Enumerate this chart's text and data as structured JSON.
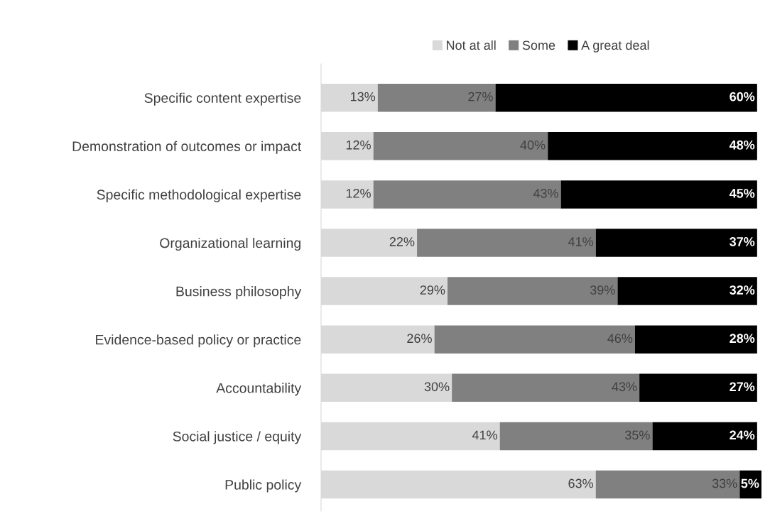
{
  "chart_data": {
    "type": "bar",
    "orientation": "horizontal",
    "stacked": true,
    "legend": "top",
    "grid": false,
    "tick_labels": "y",
    "categories": [
      "Specific content expertise",
      "Demonstration of outcomes or impact",
      "Specific methodological expertise",
      "Organizational learning",
      "Business philosophy",
      "Evidence-based policy or practice",
      "Accountability",
      "Social justice / equity",
      "Public policy"
    ],
    "series": [
      {
        "name": "Not at all",
        "color": "#d9d9d9",
        "values": [
          13,
          12,
          12,
          22,
          29,
          26,
          30,
          41,
          63
        ],
        "value_labels": [
          "13%",
          "12%",
          "12%",
          "22%",
          "29%",
          "26%",
          "30%",
          "41%",
          "63%"
        ]
      },
      {
        "name": "Some",
        "color": "#808080",
        "values": [
          27,
          40,
          43,
          41,
          39,
          46,
          43,
          35,
          33
        ],
        "value_labels": [
          "27%",
          "40%",
          "43%",
          "41%",
          "39%",
          "46%",
          "43%",
          "35%",
          "33%"
        ]
      },
      {
        "name": "A great deal",
        "color": "#000000",
        "values": [
          60,
          48,
          45,
          37,
          32,
          28,
          27,
          24,
          5
        ],
        "value_labels": [
          "60%",
          "48%",
          "45%",
          "37%",
          "32%",
          "28%",
          "27%",
          "24%",
          "5%"
        ]
      }
    ]
  }
}
